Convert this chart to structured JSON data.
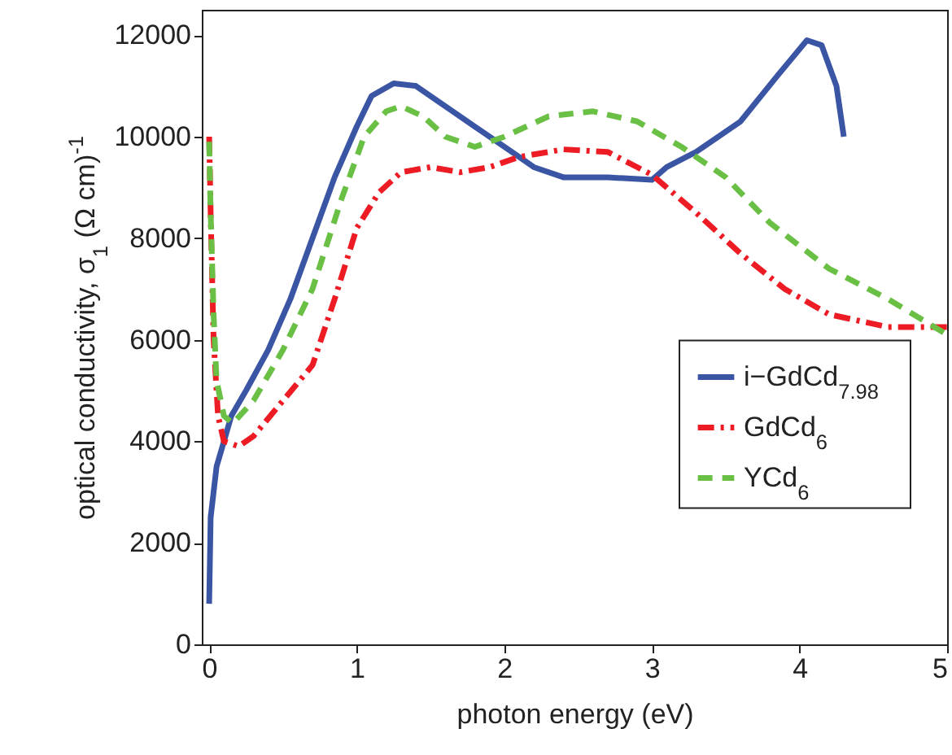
{
  "chart_data": {
    "type": "line",
    "xlabel": "photon energy (eV)",
    "ylabel": "optical conductivity, σ$_{1}$ (Ω cm)$^{-1}$",
    "xlim": [
      -0.05,
      5
    ],
    "xticks": [
      0,
      1,
      2,
      3,
      4,
      5
    ],
    "ylim": [
      0,
      12500
    ],
    "yticks": [
      0,
      2000,
      4000,
      6000,
      8000,
      10000,
      12000
    ],
    "grid": false,
    "legend": "right",
    "series": [
      {
        "name": "i−GdCd$_{7.98}$",
        "color": "#3a55a4",
        "line_style": "solid",
        "x": [
          0,
          0.01,
          0.03,
          0.05,
          0.1,
          0.15,
          0.25,
          0.4,
          0.55,
          0.7,
          0.85,
          1.0,
          1.1,
          1.25,
          1.4,
          1.6,
          1.8,
          2.0,
          2.2,
          2.4,
          2.7,
          3.0,
          3.1,
          3.3,
          3.6,
          3.85,
          4.05,
          4.15,
          4.25,
          4.3
        ],
        "values": [
          800,
          2500,
          3000,
          3500,
          4000,
          4500,
          5000,
          5800,
          6800,
          8000,
          9200,
          10200,
          10800,
          11050,
          11000,
          10600,
          10200,
          9800,
          9400,
          9200,
          9200,
          9150,
          9400,
          9700,
          10300,
          11200,
          11900,
          11800,
          11000,
          10000
        ]
      },
      {
        "name": "GdCd$_{6}$",
        "color": "#ed1c24",
        "line_style": "dashdot",
        "x": [
          0,
          0.01,
          0.03,
          0.06,
          0.1,
          0.2,
          0.3,
          0.5,
          0.7,
          0.85,
          1.0,
          1.15,
          1.3,
          1.5,
          1.7,
          1.9,
          2.1,
          2.4,
          2.7,
          3.0,
          3.3,
          3.6,
          3.9,
          4.2,
          4.6,
          5.0
        ],
        "values": [
          10000,
          8500,
          6000,
          4500,
          4000,
          3900,
          4100,
          4800,
          5500,
          6800,
          8200,
          8900,
          9300,
          9400,
          9300,
          9400,
          9600,
          9750,
          9700,
          9250,
          8500,
          7700,
          7000,
          6500,
          6250,
          6250
        ]
      },
      {
        "name": "YCd$_{6}$",
        "color": "#6abf45",
        "line_style": "dashed",
        "x": [
          0,
          0.01,
          0.03,
          0.05,
          0.1,
          0.16,
          0.3,
          0.5,
          0.7,
          0.9,
          1.05,
          1.2,
          1.3,
          1.45,
          1.6,
          1.8,
          2.0,
          2.3,
          2.6,
          2.9,
          3.2,
          3.5,
          3.8,
          4.2,
          4.6,
          5.0
        ],
        "values": [
          9900,
          8500,
          6500,
          5200,
          4500,
          4350,
          4800,
          5800,
          7000,
          8800,
          10000,
          10500,
          10600,
          10400,
          10000,
          9800,
          10000,
          10400,
          10500,
          10300,
          9800,
          9200,
          8300,
          7400,
          6800,
          6100
        ]
      }
    ]
  }
}
